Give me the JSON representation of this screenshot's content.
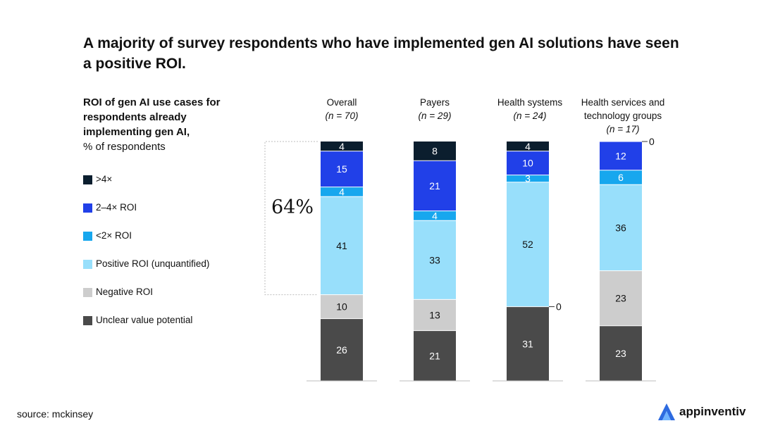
{
  "title": "A majority of survey respondents who have implemented gen AI solutions have seen a positive ROI.",
  "subtitle": {
    "bold": "ROI of gen AI use cases for respondents already implementing gen AI,",
    "unit": "% of respondents"
  },
  "callout": "64%",
  "source": "source: mckinsey",
  "logo": {
    "text": "appinventiv",
    "icon": "appinventiv-logo-icon"
  },
  "colors": {
    "gt4x": "#0b1e2e",
    "roi_2_4x": "#2140e8",
    "roi_lt2x": "#17a7ee",
    "positive_unquantified": "#98dffb",
    "negative": "#cdcdcd",
    "unclear": "#4a4a4a"
  },
  "legend": [
    {
      "key": "gt4x",
      "label": ">4×"
    },
    {
      "key": "roi_2_4x",
      "label": "2–4× ROI"
    },
    {
      "key": "roi_lt2x",
      "label": "<2× ROI"
    },
    {
      "key": "positive_unquantified",
      "label": "Positive ROI (unquantified)"
    },
    {
      "key": "negative",
      "label": "Negative ROI"
    },
    {
      "key": "unclear",
      "label": "Unclear value potential"
    }
  ],
  "columns": [
    {
      "name": "Overall",
      "n": "(n = 70)"
    },
    {
      "name": "Payers",
      "n": "(n = 29)"
    },
    {
      "name": "Health systems",
      "n": "(n = 24)"
    },
    {
      "name": "Health services and technology groups",
      "n": "(n = 17)"
    }
  ],
  "chart_data": {
    "type": "bar",
    "stacked": true,
    "unit": "% of respondents",
    "categories": [
      "Overall",
      "Payers",
      "Health systems",
      "Health services and technology groups"
    ],
    "series": [
      {
        "name": ">4×",
        "values": [
          4,
          8,
          4,
          0
        ]
      },
      {
        "name": "2–4× ROI",
        "values": [
          15,
          21,
          10,
          12
        ]
      },
      {
        "name": "<2× ROI",
        "values": [
          4,
          4,
          3,
          6
        ]
      },
      {
        "name": "Positive ROI (unquantified)",
        "values": [
          41,
          33,
          52,
          36
        ]
      },
      {
        "name": "Negative ROI",
        "values": [
          10,
          13,
          0,
          23
        ]
      },
      {
        "name": "Unclear value potential",
        "values": [
          26,
          21,
          31,
          23
        ]
      }
    ],
    "zero_labels": [
      "0",
      "0"
    ],
    "annotation": "64%"
  }
}
